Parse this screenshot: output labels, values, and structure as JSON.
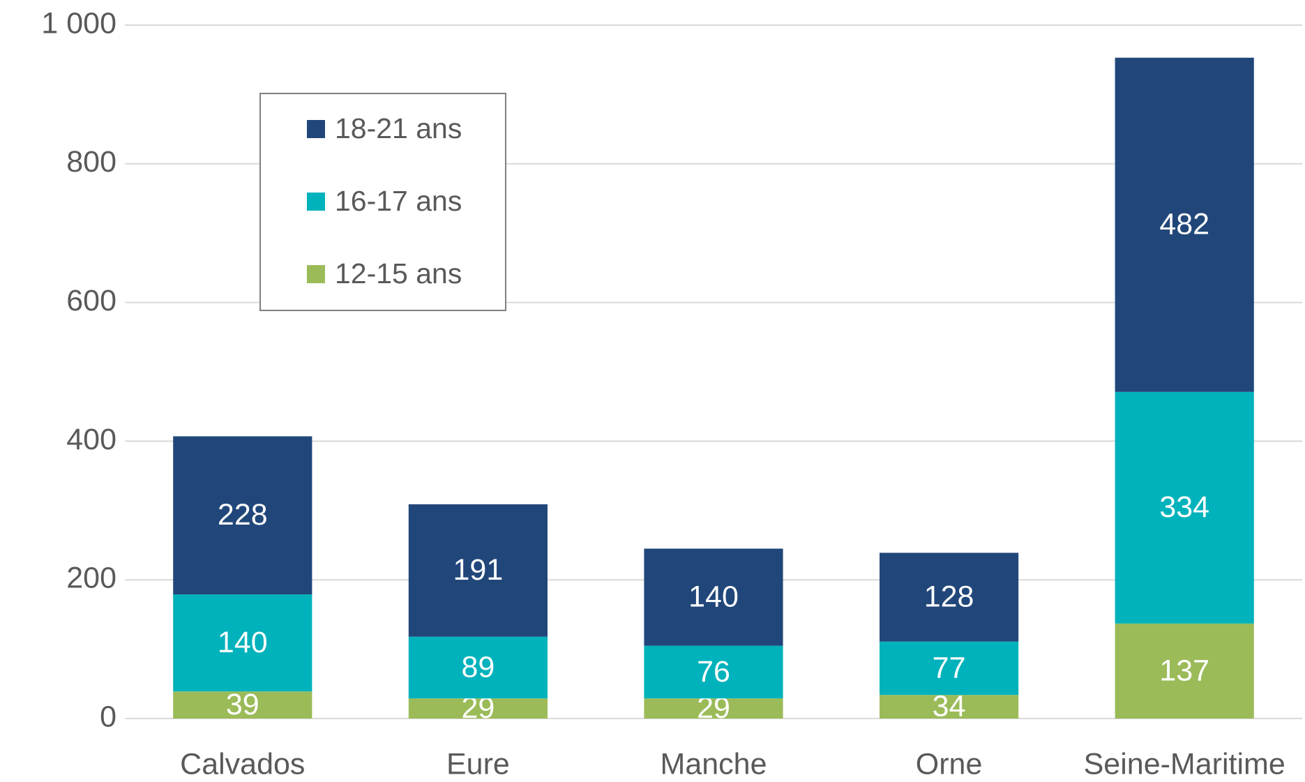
{
  "chart_data": {
    "type": "stacked_bar",
    "categories": [
      "Calvados",
      "Eure",
      "Manche",
      "Orne",
      "Seine-Maritime"
    ],
    "series": [
      {
        "name": "12-15 ans",
        "color": "#9bbb59",
        "values": [
          39,
          29,
          29,
          34,
          137
        ]
      },
      {
        "name": "16-17 ans",
        "color": "#00b2bb",
        "values": [
          140,
          89,
          76,
          77,
          334
        ]
      },
      {
        "name": "18-21 ans",
        "color": "#21477a",
        "values": [
          228,
          191,
          140,
          128,
          482
        ]
      }
    ],
    "ylim": [
      0,
      1000
    ],
    "yticks": [
      0,
      200,
      400,
      600,
      800,
      {
        "value": 1000,
        "label": "1 000"
      }
    ],
    "grid": true,
    "legend": "upper left"
  }
}
